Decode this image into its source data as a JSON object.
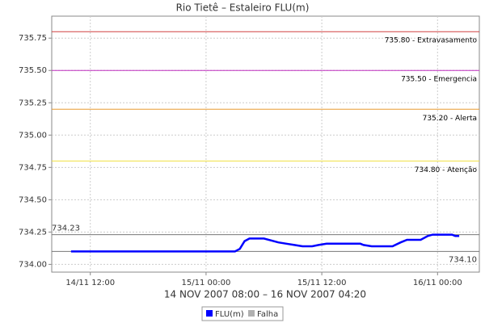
{
  "chart_data": {
    "type": "line",
    "title": "Rio Tietê – Estaleiro FLU(m)",
    "xlabel": "14 NOV 2007 08:00 – 16 NOV 2007 04:20",
    "x": [
      "2007-11-14T10:00",
      "2007-11-15T03:00",
      "2007-11-15T03:30",
      "2007-11-15T04:00",
      "2007-11-15T04:30",
      "2007-11-15T06:00",
      "2007-11-15T07:00",
      "2007-11-15T07:30",
      "2007-11-15T08:20",
      "2007-11-15T09:10",
      "2007-11-15T10:00",
      "2007-11-15T11:00",
      "2007-11-15T11:40",
      "2007-11-15T12:30",
      "2007-11-15T16:00",
      "2007-11-15T16:20",
      "2007-11-15T17:10",
      "2007-11-15T19:20",
      "2007-11-15T20:10",
      "2007-11-15T20:50",
      "2007-11-15T22:15",
      "2007-11-15T23:00",
      "2007-11-15T23:30",
      "2007-11-16T01:30",
      "2007-11-16T01:50",
      "2007-11-16T02:15"
    ],
    "series": [
      {
        "name": "FLU(m)",
        "color": "#0000ff",
        "values": [
          734.1,
          734.1,
          734.12,
          734.18,
          734.2,
          734.2,
          734.18,
          734.17,
          734.16,
          734.15,
          734.14,
          734.14,
          734.15,
          734.16,
          734.16,
          734.15,
          734.14,
          734.14,
          734.17,
          734.19,
          734.19,
          734.22,
          734.23,
          734.23,
          734.22,
          734.22
        ]
      },
      {
        "name": "Falha",
        "color": "#b0b0b0",
        "values": [
          null,
          null,
          null,
          null,
          null,
          null,
          null,
          null,
          null,
          null,
          null,
          null,
          null,
          null,
          null,
          null,
          null,
          null,
          null,
          null,
          null,
          null,
          null,
          null,
          null,
          null
        ]
      }
    ],
    "xlim": [
      "2007-11-14T08:00",
      "2007-11-16T04:20"
    ],
    "xticks": [
      {
        "value": "2007-11-14T12:00",
        "label": "14/11 12:00"
      },
      {
        "value": "2007-11-15T00:00",
        "label": "15/11 00:00"
      },
      {
        "value": "2007-11-15T12:00",
        "label": "15/11 12:00"
      },
      {
        "value": "2007-11-16T00:00",
        "label": "16/11 00:00"
      }
    ],
    "ylim": [
      733.94,
      735.92
    ],
    "yticks": [
      {
        "value": 734,
        "label": "734.00"
      },
      734.25,
      {
        "value": 734.5,
        "label": "734.50"
      },
      734.75,
      {
        "value": 735,
        "label": "735.00"
      },
      735.25,
      {
        "value": 735.5,
        "label": "735.50"
      },
      735.75
    ],
    "grid": true,
    "thresholds": [
      {
        "value": 735.8,
        "label": "735.80 - Extravasamento",
        "color": "#d04040"
      },
      {
        "value": 735.5,
        "label": "735.50 - Emergencia",
        "color": "#c030c0"
      },
      {
        "value": 735.2,
        "label": "735.20 - Alerta",
        "color": "#e89a30"
      },
      {
        "value": 734.8,
        "label": "734.80 - Atenção",
        "color": "#f0e040"
      }
    ],
    "reference_lines": [
      {
        "value": 734.23
      },
      {
        "value": 734.1,
        "label": "734.10"
      }
    ]
  }
}
